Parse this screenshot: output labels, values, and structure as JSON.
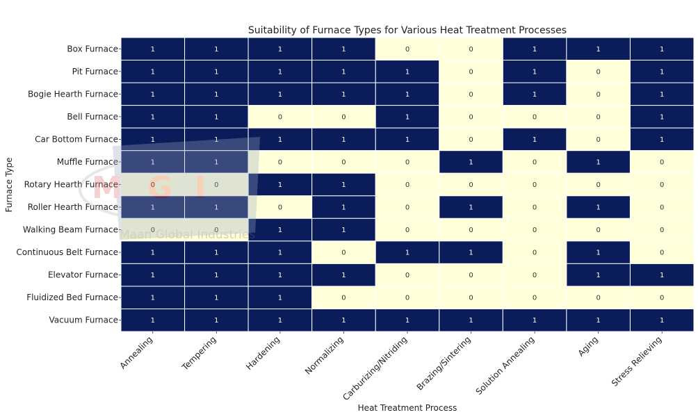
{
  "chart_data": {
    "type": "heatmap",
    "title": "Suitability of Furnace Types for Various Heat Treatment Processes",
    "xlabel": "Heat Treatment Process",
    "ylabel": "Furnace Type",
    "columns": [
      "Annealing",
      "Tempering",
      "Hardening",
      "Normalizing",
      "Carburizing/Nitriding",
      "Brazing/Sintering",
      "Solution Annealing",
      "Aging",
      "Stress Relieving"
    ],
    "rows": [
      "Box Furnace",
      "Pit Furnace",
      "Bogie Hearth Furnace",
      "Bell Furnace",
      "Car Bottom Furnace",
      "Muffle Furnace",
      "Rotary Hearth Furnace",
      "Roller Hearth Furnace",
      "Walking Beam Furnace",
      "Continuous Belt Furnace",
      "Elevator Furnace",
      "Fluidized Bed Furnace",
      "Vacuum Furnace"
    ],
    "values": [
      [
        1,
        1,
        1,
        1,
        0,
        0,
        1,
        1,
        1
      ],
      [
        1,
        1,
        1,
        1,
        1,
        0,
        1,
        0,
        1
      ],
      [
        1,
        1,
        1,
        1,
        1,
        0,
        1,
        0,
        1
      ],
      [
        1,
        1,
        0,
        0,
        1,
        0,
        0,
        0,
        1
      ],
      [
        1,
        1,
        1,
        1,
        1,
        0,
        1,
        0,
        1
      ],
      [
        1,
        1,
        0,
        0,
        0,
        1,
        0,
        1,
        0
      ],
      [
        0,
        0,
        1,
        1,
        0,
        0,
        0,
        0,
        0
      ],
      [
        1,
        1,
        0,
        1,
        0,
        1,
        0,
        1,
        0
      ],
      [
        0,
        0,
        1,
        1,
        0,
        0,
        0,
        0,
        0
      ],
      [
        1,
        1,
        1,
        0,
        1,
        1,
        0,
        1,
        0
      ],
      [
        1,
        1,
        1,
        1,
        0,
        0,
        0,
        1,
        1
      ],
      [
        1,
        1,
        1,
        0,
        0,
        0,
        0,
        0,
        0
      ],
      [
        1,
        1,
        1,
        1,
        1,
        1,
        1,
        1,
        1
      ]
    ],
    "colors": {
      "one": "#0b1c5a",
      "zero": "#ffffd9",
      "text_on_one": "#ffffff",
      "text_on_zero": "#333333"
    }
  },
  "watermark": {
    "logo_text": "MGI",
    "company": "Maan Global Industries"
  }
}
